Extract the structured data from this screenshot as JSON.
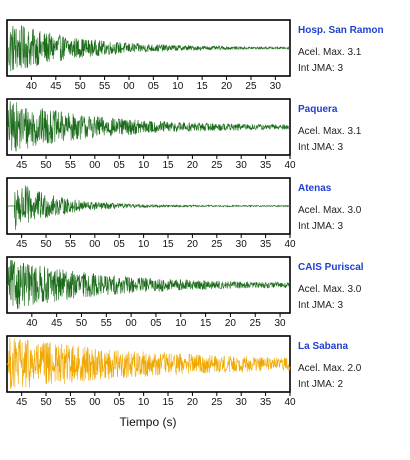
{
  "chart_data": {
    "type": "line",
    "xlabel": "Tiempo (s)",
    "grid": false,
    "panels": [
      {
        "station": "Hosp. San Ramon",
        "acel_label": "Acel. Max. 3.1",
        "int_label": "Int JMA: 3",
        "color": "#1a6b1a",
        "tick_labels": [
          "40",
          "45",
          "50",
          "55",
          "00",
          "05",
          "10",
          "15",
          "20",
          "25",
          "30",
          "35"
        ],
        "first_tick_offset": 5,
        "window_s": 58,
        "onset_s": 0.3,
        "peak_amp": 0.95,
        "decay": 0.07,
        "noise": 0.02
      },
      {
        "station": "Paquera",
        "acel_label": "Acel. Max. 3.1",
        "int_label": "Int JMA: 3",
        "color": "#1a6b1a",
        "tick_labels": [
          "45",
          "50",
          "55",
          "00",
          "05",
          "10",
          "15",
          "20",
          "25",
          "30",
          "35",
          "40"
        ],
        "first_tick_offset": 3,
        "window_s": 58,
        "onset_s": 0.3,
        "peak_amp": 0.92,
        "decay": 0.055,
        "noise": 0.05
      },
      {
        "station": "Atenas",
        "acel_label": "Acel. Max. 3.0",
        "int_label": "Int JMA: 3",
        "color": "#1a6b1a",
        "tick_labels": [
          "45",
          "50",
          "55",
          "00",
          "05",
          "10",
          "15",
          "20",
          "25",
          "30",
          "35",
          "40"
        ],
        "first_tick_offset": 3,
        "window_s": 58,
        "onset_s": 1.5,
        "peak_amp": 0.95,
        "decay": 0.12,
        "noise": 0.02
      },
      {
        "station": "CAIS Puriscal",
        "acel_label": "Acel. Max. 3.0",
        "int_label": "Int JMA: 3",
        "color": "#1a6b1a",
        "tick_labels": [
          "40",
          "45",
          "50",
          "55",
          "00",
          "05",
          "10",
          "15",
          "20",
          "25",
          "30",
          "35"
        ],
        "first_tick_offset": 5,
        "window_s": 57,
        "onset_s": 0.3,
        "peak_amp": 0.9,
        "decay": 0.05,
        "noise": 0.04
      },
      {
        "station": "La Sabana",
        "acel_label": "Acel. Max. 2.0",
        "int_label": "Int JMA: 2",
        "color": "#f0a800",
        "tick_labels": [
          "45",
          "50",
          "55",
          "00",
          "05",
          "10",
          "15",
          "20",
          "25",
          "30",
          "35",
          "40"
        ],
        "first_tick_offset": 3,
        "window_s": 58,
        "onset_s": 0.3,
        "peak_amp": 0.92,
        "decay": 0.03,
        "noise": 0.07
      }
    ]
  }
}
